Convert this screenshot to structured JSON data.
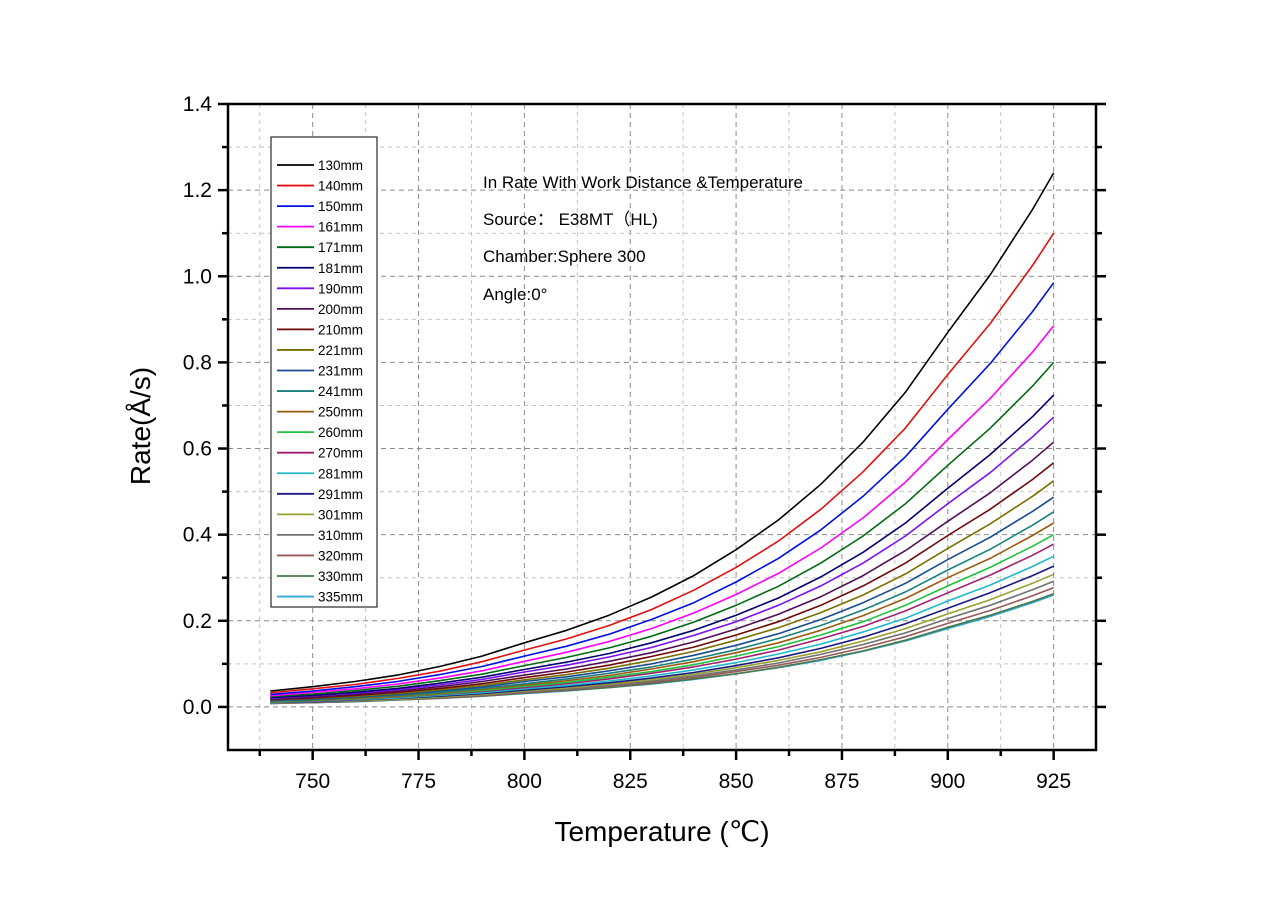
{
  "chart_data": {
    "type": "line",
    "title": "",
    "xlabel": "Temperature (℃)",
    "ylabel": "Rate(Å/s)",
    "xlim": [
      730,
      935
    ],
    "ylim": [
      -0.1,
      1.4
    ],
    "x_ticks": [
      750,
      775,
      800,
      825,
      850,
      875,
      900,
      925
    ],
    "x_tick_labels": [
      "750",
      "775",
      "800",
      "825",
      "850",
      "875",
      "900",
      "925"
    ],
    "y_ticks": [
      0.0,
      0.2,
      0.4,
      0.6,
      0.8,
      1.0,
      1.2,
      1.4
    ],
    "y_tick_labels": [
      "0.0",
      "0.2",
      "0.4",
      "0.6",
      "0.8",
      "1.0",
      "1.2",
      "1.4"
    ],
    "grid": true,
    "legend_position": "top-left",
    "annotations": [
      "In Rate With Work Distance &Temperature",
      "Source： E38MT（HL)",
      "Chamber:Sphere 300",
      "Angle:0°"
    ],
    "x": [
      740,
      750,
      760,
      770,
      780,
      790,
      800,
      810,
      820,
      830,
      840,
      850,
      860,
      870,
      880,
      890,
      900,
      910,
      920,
      925
    ],
    "series": [
      {
        "name": "130mm",
        "color": "#000000",
        "values": [
          0.037,
          0.047,
          0.059,
          0.074,
          0.094,
          0.118,
          0.149,
          0.178,
          0.213,
          0.255,
          0.305,
          0.365,
          0.434,
          0.517,
          0.615,
          0.731,
          0.87,
          1.003,
          1.155,
          1.24
        ]
      },
      {
        "name": "140mm",
        "color": "#e01010",
        "values": [
          0.033,
          0.042,
          0.052,
          0.066,
          0.083,
          0.105,
          0.132,
          0.158,
          0.189,
          0.226,
          0.271,
          0.324,
          0.385,
          0.459,
          0.546,
          0.648,
          0.772,
          0.89,
          1.025,
          1.1
        ]
      },
      {
        "name": "150mm",
        "color": "#0010e0",
        "values": [
          0.029,
          0.037,
          0.047,
          0.059,
          0.075,
          0.094,
          0.118,
          0.141,
          0.169,
          0.203,
          0.242,
          0.29,
          0.345,
          0.411,
          0.489,
          0.581,
          0.691,
          0.797,
          0.918,
          0.985
        ]
      },
      {
        "name": "161mm",
        "color": "#ff00ff",
        "values": [
          0.026,
          0.034,
          0.042,
          0.053,
          0.067,
          0.084,
          0.106,
          0.127,
          0.152,
          0.182,
          0.218,
          0.261,
          0.31,
          0.369,
          0.439,
          0.522,
          0.621,
          0.716,
          0.824,
          0.885
        ]
      },
      {
        "name": "171mm",
        "color": "#006a10",
        "values": [
          0.024,
          0.03,
          0.038,
          0.048,
          0.061,
          0.076,
          0.096,
          0.115,
          0.137,
          0.164,
          0.197,
          0.236,
          0.28,
          0.334,
          0.397,
          0.472,
          0.561,
          0.647,
          0.745,
          0.8
        ]
      },
      {
        "name": "181mm",
        "color": "#000070",
        "values": [
          0.022,
          0.027,
          0.034,
          0.043,
          0.055,
          0.069,
          0.087,
          0.104,
          0.124,
          0.149,
          0.178,
          0.213,
          0.253,
          0.302,
          0.359,
          0.427,
          0.508,
          0.586,
          0.674,
          0.724
        ]
      },
      {
        "name": "190mm",
        "color": "#7a10f0",
        "values": [
          0.02,
          0.026,
          0.032,
          0.04,
          0.051,
          0.064,
          0.081,
          0.097,
          0.116,
          0.138,
          0.166,
          0.198,
          0.236,
          0.281,
          0.334,
          0.397,
          0.472,
          0.544,
          0.627,
          0.673
        ]
      },
      {
        "name": "200mm",
        "color": "#501058",
        "values": [
          0.018,
          0.023,
          0.029,
          0.037,
          0.047,
          0.059,
          0.074,
          0.088,
          0.106,
          0.126,
          0.151,
          0.181,
          0.215,
          0.256,
          0.305,
          0.363,
          0.431,
          0.497,
          0.573,
          0.615
        ]
      },
      {
        "name": "210mm",
        "color": "#700808",
        "values": [
          0.017,
          0.021,
          0.027,
          0.034,
          0.043,
          0.054,
          0.068,
          0.081,
          0.097,
          0.117,
          0.139,
          0.167,
          0.198,
          0.236,
          0.281,
          0.334,
          0.398,
          0.459,
          0.528,
          0.567
        ]
      },
      {
        "name": "221mm",
        "color": "#7a7000",
        "values": [
          0.016,
          0.02,
          0.025,
          0.031,
          0.04,
          0.05,
          0.063,
          0.075,
          0.09,
          0.108,
          0.129,
          0.155,
          0.184,
          0.219,
          0.26,
          0.309,
          0.368,
          0.425,
          0.489,
          0.525
        ]
      },
      {
        "name": "231mm",
        "color": "#1a4a90",
        "values": [
          0.015,
          0.018,
          0.023,
          0.029,
          0.037,
          0.046,
          0.059,
          0.07,
          0.084,
          0.1,
          0.12,
          0.143,
          0.17,
          0.203,
          0.242,
          0.287,
          0.342,
          0.394,
          0.454,
          0.487
        ]
      },
      {
        "name": "241mm",
        "color": "#1a8080",
        "values": [
          0.013,
          0.017,
          0.022,
          0.027,
          0.034,
          0.043,
          0.054,
          0.065,
          0.078,
          0.093,
          0.111,
          0.133,
          0.159,
          0.189,
          0.225,
          0.267,
          0.318,
          0.366,
          0.422,
          0.453
        ]
      },
      {
        "name": "250mm",
        "color": "#9a5a10",
        "values": [
          0.013,
          0.016,
          0.02,
          0.025,
          0.032,
          0.041,
          0.051,
          0.061,
          0.073,
          0.088,
          0.105,
          0.126,
          0.149,
          0.178,
          0.212,
          0.252,
          0.3,
          0.345,
          0.398,
          0.427
        ]
      },
      {
        "name": "260mm",
        "color": "#20c040",
        "values": [
          0.012,
          0.015,
          0.019,
          0.024,
          0.03,
          0.038,
          0.048,
          0.057,
          0.069,
          0.082,
          0.098,
          0.118,
          0.14,
          0.167,
          0.198,
          0.236,
          0.281,
          0.324,
          0.373,
          0.4
        ]
      },
      {
        "name": "270mm",
        "color": "#a02070",
        "values": [
          0.011,
          0.014,
          0.018,
          0.023,
          0.029,
          0.036,
          0.045,
          0.054,
          0.065,
          0.078,
          0.093,
          0.111,
          0.132,
          0.158,
          0.187,
          0.223,
          0.265,
          0.306,
          0.352,
          0.378
        ]
      },
      {
        "name": "281mm",
        "color": "#20b8c8",
        "values": [
          0.01,
          0.013,
          0.017,
          0.021,
          0.027,
          0.033,
          0.042,
          0.05,
          0.06,
          0.072,
          0.086,
          0.103,
          0.123,
          0.146,
          0.174,
          0.206,
          0.246,
          0.283,
          0.326,
          0.35
        ]
      },
      {
        "name": "291mm",
        "color": "#1a1a80",
        "values": [
          0.01,
          0.012,
          0.016,
          0.02,
          0.025,
          0.031,
          0.039,
          0.047,
          0.056,
          0.067,
          0.08,
          0.096,
          0.114,
          0.136,
          0.162,
          0.193,
          0.229,
          0.265,
          0.305,
          0.327
        ]
      },
      {
        "name": "301mm",
        "color": "#98a030",
        "values": [
          0.009,
          0.012,
          0.015,
          0.018,
          0.023,
          0.029,
          0.037,
          0.044,
          0.053,
          0.063,
          0.076,
          0.091,
          0.108,
          0.128,
          0.153,
          0.182,
          0.216,
          0.249,
          0.287,
          0.308
        ]
      },
      {
        "name": "310mm",
        "color": "#707070",
        "values": [
          0.009,
          0.011,
          0.014,
          0.017,
          0.022,
          0.028,
          0.035,
          0.042,
          0.05,
          0.06,
          0.072,
          0.086,
          0.102,
          0.122,
          0.145,
          0.172,
          0.205,
          0.236,
          0.272,
          0.292
        ]
      },
      {
        "name": "320mm",
        "color": "#985858",
        "values": [
          0.008,
          0.01,
          0.013,
          0.017,
          0.021,
          0.026,
          0.033,
          0.04,
          0.048,
          0.057,
          0.068,
          0.082,
          0.097,
          0.115,
          0.137,
          0.163,
          0.194,
          0.224,
          0.258,
          0.277
        ]
      },
      {
        "name": "330mm",
        "color": "#4a7a4a",
        "values": [
          0.008,
          0.01,
          0.013,
          0.016,
          0.02,
          0.025,
          0.032,
          0.038,
          0.045,
          0.054,
          0.065,
          0.077,
          0.092,
          0.11,
          0.13,
          0.155,
          0.185,
          0.213,
          0.245,
          0.263
        ]
      },
      {
        "name": "335mm",
        "color": "#30a8d8",
        "values": [
          0.008,
          0.01,
          0.012,
          0.016,
          0.02,
          0.025,
          0.031,
          0.037,
          0.045,
          0.053,
          0.064,
          0.077,
          0.091,
          0.108,
          0.129,
          0.153,
          0.182,
          0.21,
          0.242,
          0.26
        ]
      }
    ]
  }
}
